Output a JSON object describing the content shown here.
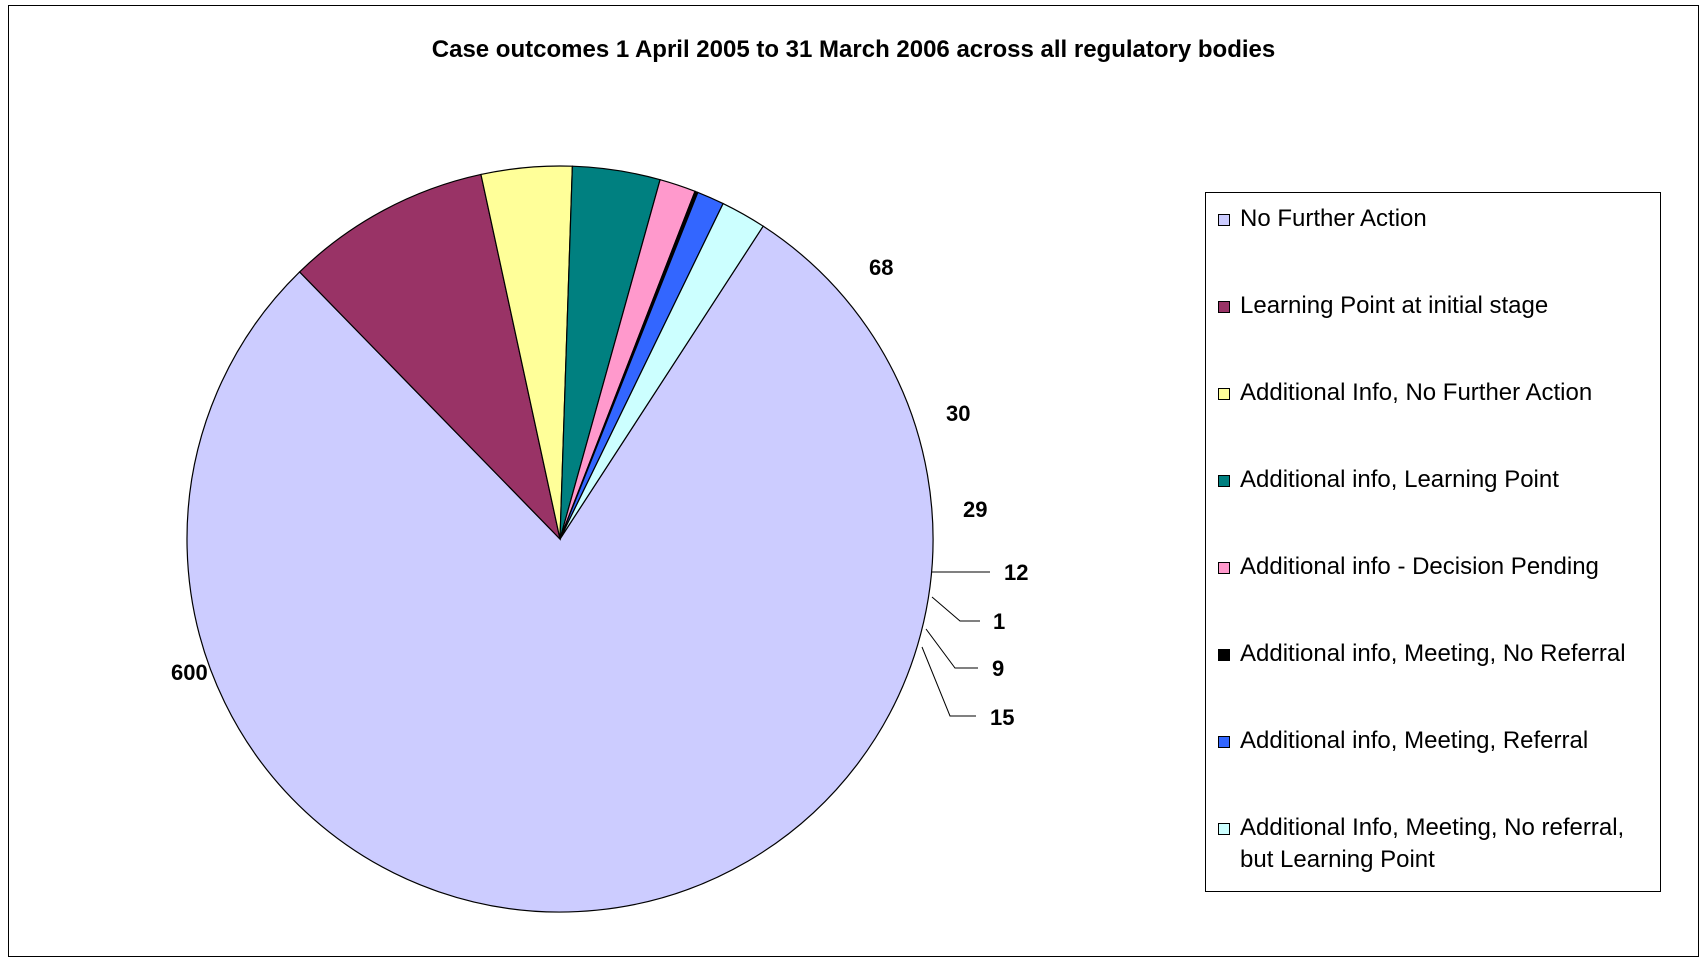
{
  "chart_data": {
    "type": "pie",
    "title": "Case outcomes 1 April 2005 to 31 March 2006 across all regulatory bodies",
    "categories": [
      "No Further Action",
      "Learning Point at initial stage",
      "Additional Info, No Further Action",
      "Additional info, Learning Point",
      "Additional info - Decision Pending",
      "Additional info, Meeting, No Referral",
      "Additional info, Meeting, Referral",
      "Additional Info, Meeting, No referral, but Learning Point"
    ],
    "values": [
      600,
      68,
      30,
      29,
      12,
      1,
      9,
      15
    ],
    "colors": [
      "#CCCCFF",
      "#993366",
      "#FFFF99",
      "#008080",
      "#FF99CC",
      "#000000",
      "#3366FF",
      "#CCFFFF"
    ],
    "data_labels": [
      "600",
      "68",
      "30",
      "29",
      "12",
      "1",
      "9",
      "15"
    ],
    "legend_position": "right",
    "start_angle_deg": 33,
    "direction": "clockwise"
  }
}
